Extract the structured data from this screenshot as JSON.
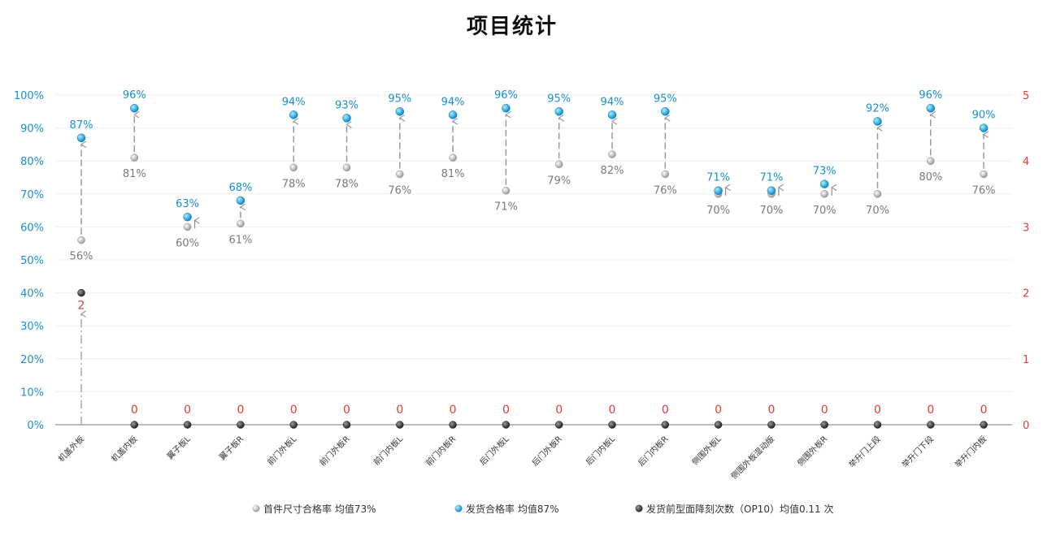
{
  "chart_data": {
    "type": "scatter",
    "title": "项目统计",
    "categories": [
      "机盖外板",
      "机盖内板",
      "翼子板L",
      "翼子板R",
      "前门外板L",
      "前门外板R",
      "前门内板L",
      "前门内板R",
      "后门外板L",
      "后门外板R",
      "后门内板L",
      "后门内板R",
      "侧围外板L",
      "侧围外板湿动版",
      "侧围外板R",
      "举升门上段",
      "举升门下段",
      "举升门内板"
    ],
    "series": [
      {
        "name": "首件尺寸合格率 均值73%",
        "axis": "left",
        "color": "#c8c8c8",
        "values": [
          56,
          81,
          60,
          61,
          78,
          78,
          76,
          81,
          71,
          79,
          82,
          76,
          70,
          70,
          70,
          70,
          80,
          76
        ],
        "labels": [
          "56%",
          "81%",
          "60%",
          "61%",
          "78%",
          "78%",
          "76%",
          "81%",
          "71%",
          "79%",
          "82%",
          "76%",
          "70%",
          "70%",
          "70%",
          "70%",
          "80%",
          "76%"
        ]
      },
      {
        "name": "发货合格率 均值87%",
        "axis": "left",
        "color": "#1aa6e0",
        "values": [
          87,
          96,
          63,
          68,
          94,
          93,
          95,
          94,
          96,
          95,
          94,
          95,
          71,
          71,
          73,
          92,
          96,
          90
        ],
        "labels": [
          "87%",
          "96%",
          "63%",
          "68%",
          "94%",
          "93%",
          "95%",
          "94%",
          "96%",
          "95%",
          "94%",
          "95%",
          "71%",
          "71%",
          "73%",
          "92%",
          "96%",
          "90%"
        ]
      },
      {
        "name": "发货前型面降刻次数（OP10）均值0.11 次",
        "axis": "right",
        "color": "#444444",
        "values": [
          2,
          0,
          0,
          0,
          0,
          0,
          0,
          0,
          0,
          0,
          0,
          0,
          0,
          0,
          0,
          0,
          0,
          0
        ],
        "labels": [
          "2",
          "0",
          "0",
          "0",
          "0",
          "0",
          "0",
          "0",
          "0",
          "0",
          "0",
          "0",
          "0",
          "0",
          "0",
          "0",
          "0",
          "0"
        ]
      }
    ],
    "y_left": {
      "ylim": [
        0,
        100
      ],
      "ticks": [
        "0%",
        "10%",
        "20%",
        "30%",
        "40%",
        "50%",
        "60%",
        "70%",
        "80%",
        "90%",
        "100%"
      ],
      "color": "#1a8fd0"
    },
    "y_right": {
      "ylim": [
        0,
        5
      ],
      "ticks": [
        "0",
        "1",
        "2",
        "3",
        "4",
        "5"
      ],
      "color": "#e53935"
    },
    "grid": true,
    "legend_position": "bottom"
  }
}
